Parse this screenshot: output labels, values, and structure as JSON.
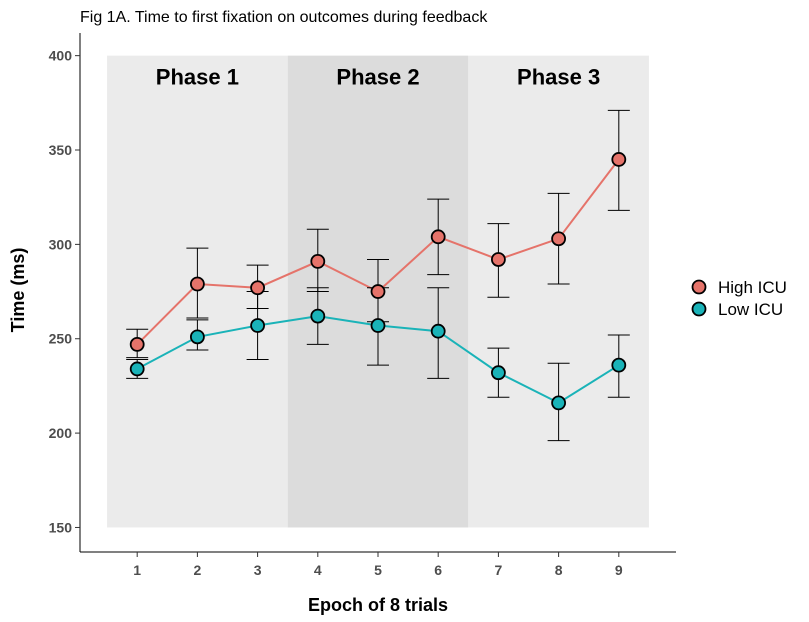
{
  "chart_data": {
    "type": "line",
    "title": "Fig 1A. Time to first fixation on outcomes during feedback",
    "xlabel": "Epoch of 8 trials",
    "ylabel": "Time (ms)",
    "x": [
      1,
      2,
      3,
      4,
      5,
      6,
      7,
      8,
      9
    ],
    "xlim": [
      0.05,
      9.95
    ],
    "ylim": [
      137,
      412
    ],
    "yticks": [
      150,
      200,
      250,
      300,
      350,
      400
    ],
    "grid": false,
    "legend_position": "right",
    "phases": [
      {
        "label": "Phase 1",
        "start": 0.5,
        "end": 3.5,
        "ymin": 150,
        "ymax": 400,
        "color": "#ebebeb"
      },
      {
        "label": "Phase 2",
        "start": 3.5,
        "end": 6.5,
        "ymin": 150,
        "ymax": 400,
        "color": "#dcdcdc"
      },
      {
        "label": "Phase 3",
        "start": 6.5,
        "end": 9.5,
        "ymin": 150,
        "ymax": 400,
        "color": "#ebebeb"
      }
    ],
    "series": [
      {
        "name": "High ICU",
        "color": "#e5736a",
        "values": [
          247,
          279,
          277,
          291,
          275,
          304,
          292,
          303,
          345
        ],
        "err_low": [
          240,
          261,
          266,
          275,
          259,
          284,
          272,
          279,
          318
        ],
        "err_high": [
          255,
          298,
          289,
          308,
          292,
          324,
          311,
          327,
          371
        ]
      },
      {
        "name": "Low ICU",
        "color": "#1ab3b8",
        "values": [
          234,
          251,
          257,
          262,
          257,
          254,
          232,
          216,
          236
        ],
        "err_low": [
          229,
          244,
          239,
          247,
          236,
          229,
          219,
          196,
          219
        ],
        "err_high": [
          239,
          260,
          275,
          277,
          277,
          277,
          245,
          237,
          252
        ]
      }
    ]
  }
}
